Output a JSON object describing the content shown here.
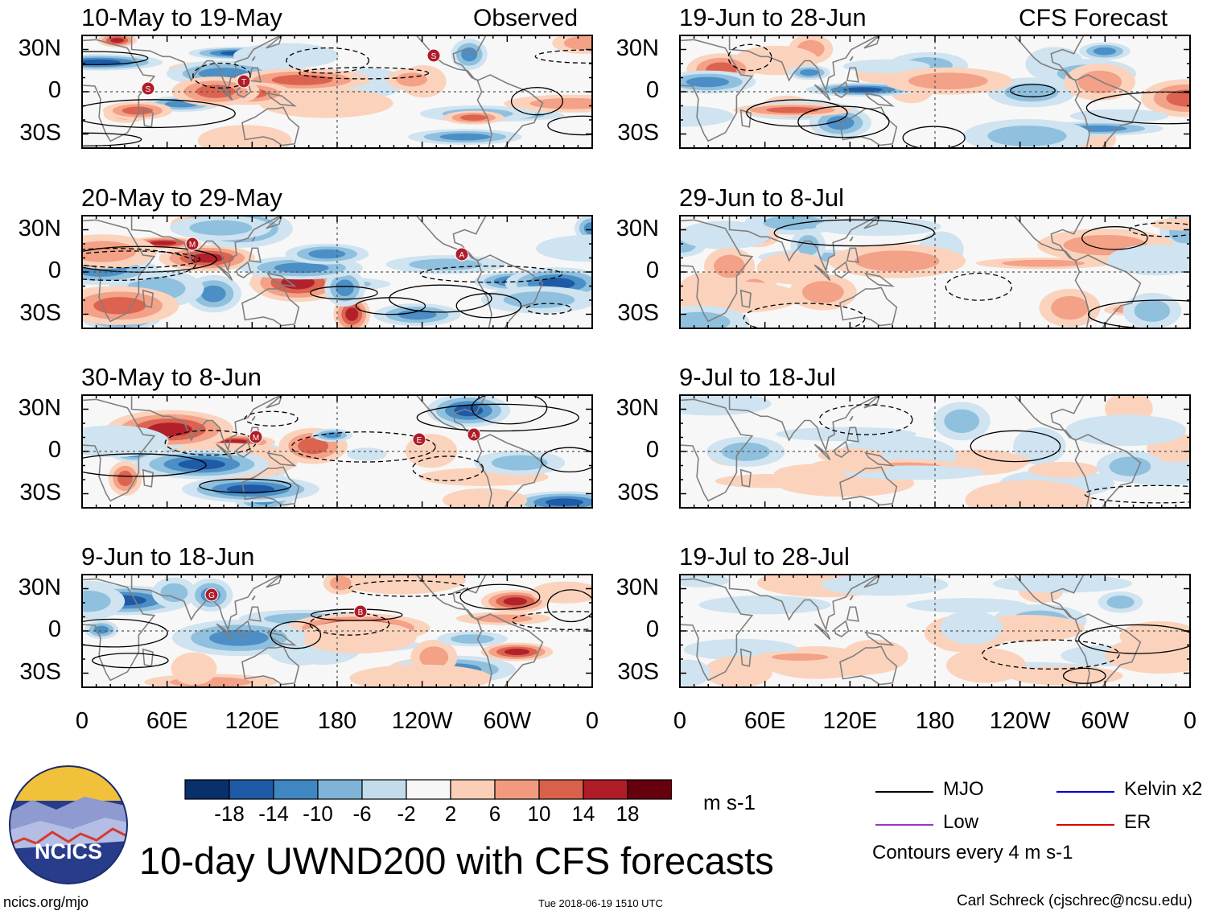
{
  "chart_data": {
    "type": "heatmap",
    "title": "10-day UWND200 with CFS forecasts",
    "variable": "200 hPa zonal wind anomaly",
    "units": "m s-1",
    "column_titles": {
      "left": "Observed",
      "right": "CFS Forecast"
    },
    "lon_ticks": [
      "0",
      "60E",
      "120E",
      "180",
      "120W",
      "60W",
      "0"
    ],
    "lat_ticks": [
      "30N",
      "0",
      "30S"
    ],
    "lat_range": [
      -40,
      40
    ],
    "lon_range": [
      0,
      360
    ],
    "panels": {
      "observed": [
        {
          "period": "10-May to 19-May",
          "storms": [
            "S",
            "S",
            "T"
          ]
        },
        {
          "period": "20-May to 29-May",
          "storms": [
            "M",
            "A"
          ]
        },
        {
          "period": "30-May to 8-Jun",
          "storms": [
            "E",
            "M",
            "A"
          ]
        },
        {
          "period": "9-Jun to 18-Jun",
          "storms": [
            "G",
            "B"
          ]
        }
      ],
      "forecast": [
        {
          "period": "19-Jun to 28-Jun"
        },
        {
          "period": "29-Jun to 8-Jul"
        },
        {
          "period": "9-Jul to 18-Jul"
        },
        {
          "period": "19-Jul to 28-Jul"
        }
      ]
    },
    "colorbar": {
      "labels": [
        "-18",
        "-14",
        "-10",
        "-6",
        "-2",
        "2",
        "6",
        "10",
        "14",
        "18"
      ],
      "colors": [
        "#08306b",
        "#1f5aa6",
        "#3f87c2",
        "#7fb4d8",
        "#c2dcec",
        "#f7f7f7",
        "#fbcfb7",
        "#f29a7e",
        "#d9604a",
        "#b01c27",
        "#67000d"
      ],
      "units": "m s-1"
    },
    "contour_legend": [
      {
        "name": "MJO",
        "color": "#000000"
      },
      {
        "name": "Kelvin x2",
        "color": "#0000cc"
      },
      {
        "name": "Low",
        "color": "#9933cc"
      },
      {
        "name": "ER",
        "color": "#dd0000"
      }
    ],
    "contour_note": "Contours every 4 m s-1"
  },
  "footer": {
    "logo_text": "NCICS",
    "url": "ncics.org/mjo",
    "timestamp": "Tue 2018-06-19 1510 UTC",
    "author": "Carl Schreck (cjschrec@ncsu.edu)"
  },
  "colors": {
    "positive": "#c9382e",
    "negative": "#2f6fb5",
    "land": "#808080"
  }
}
